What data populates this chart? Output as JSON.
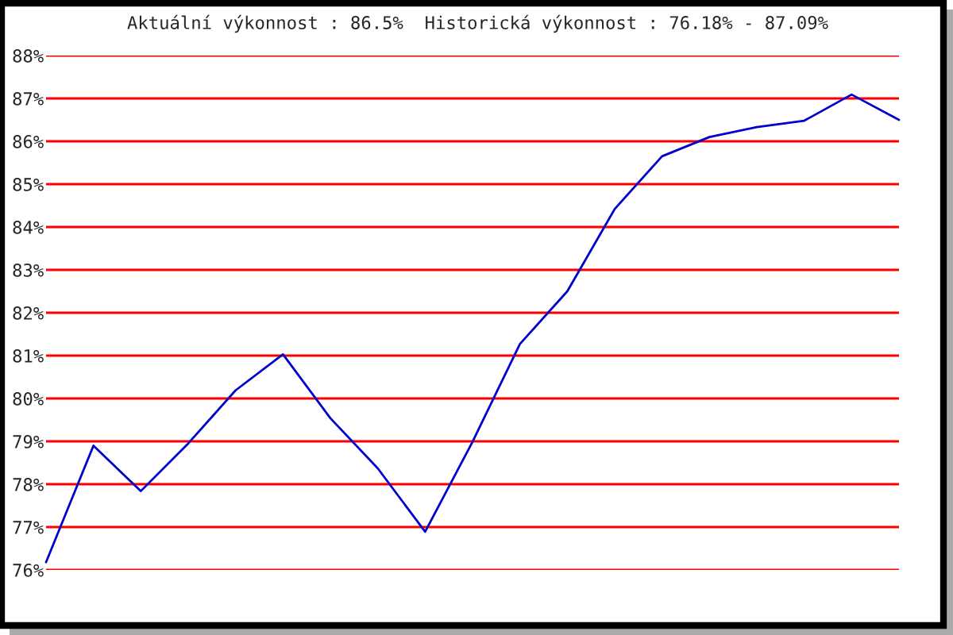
{
  "chart_data": {
    "type": "line",
    "title": "Aktuální výkonnost : 86.5%  Historická výkonnost : 76.18% - 87.09%",
    "categories": [
      null,
      null,
      null,
      null,
      null,
      null,
      null,
      null,
      null,
      null,
      null,
      null,
      null,
      null,
      null,
      null,
      null,
      null,
      null
    ],
    "series": [
      {
        "color": "#0000cc",
        "values": [
          76.18,
          78.9,
          77.84,
          78.95,
          80.19,
          81.03,
          79.54,
          78.37,
          76.89,
          78.99,
          81.27,
          82.5,
          84.42,
          85.65,
          86.1,
          86.33,
          86.48,
          87.09,
          86.5
        ]
      }
    ],
    "ylim": [
      76,
      88
    ],
    "yticks": [
      {
        "value": 76,
        "label": "76%"
      },
      {
        "value": 77,
        "label": "77%"
      },
      {
        "value": 78,
        "label": "78%"
      },
      {
        "value": 79,
        "label": "79%"
      },
      {
        "value": 80,
        "label": "80%"
      },
      {
        "value": 81,
        "label": "81%"
      },
      {
        "value": 82,
        "label": "82%"
      },
      {
        "value": 83,
        "label": "83%"
      },
      {
        "value": 84,
        "label": "84%"
      },
      {
        "value": 85,
        "label": "85%"
      },
      {
        "value": 86,
        "label": "86%"
      },
      {
        "value": 87,
        "label": "87%"
      },
      {
        "value": 88,
        "label": "88%"
      }
    ],
    "grid": "y",
    "legend": false,
    "marker": "none",
    "line_style": "solid"
  }
}
